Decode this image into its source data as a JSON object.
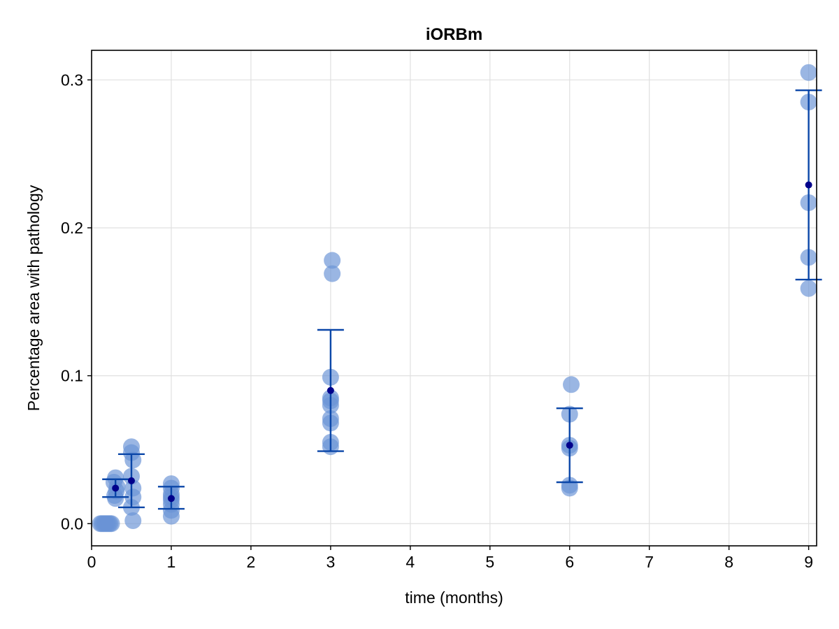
{
  "chart_data": {
    "type": "scatter",
    "title": "iORBm",
    "xlabel": "time (months)",
    "ylabel": "Percentage area with pathology",
    "xlim": [
      0,
      9.1
    ],
    "ylim": [
      -0.015,
      0.32
    ],
    "xticks": [
      0,
      1,
      2,
      3,
      4,
      5,
      6,
      7,
      8,
      9
    ],
    "xtick_labels": [
      "0",
      "1",
      "2",
      "3",
      "4",
      "5",
      "6",
      "7",
      "8",
      "9"
    ],
    "yticks": [
      0.0,
      0.1,
      0.2,
      0.3
    ],
    "ytick_labels": [
      "0.0",
      "0.1",
      "0.2",
      "0.3"
    ],
    "grid": true,
    "colors": {
      "points": "#6a93d6",
      "errorbar": "#0a46a8",
      "mean": "#00008b",
      "grid": "#e0e0e0",
      "axes": "#000000"
    },
    "groups": [
      {
        "time": 0.15,
        "points": [
          0,
          0,
          0,
          0,
          0,
          0,
          0,
          0
        ],
        "jitter": [
          -0.04,
          -0.02,
          0.0,
          0.02,
          0.04,
          0.06,
          0.08,
          0.1
        ],
        "mean": null
      },
      {
        "time": 0.3,
        "points": [
          0.031,
          0.028,
          0.025,
          0.022,
          0.019,
          0.017
        ],
        "jitter": [
          0.0,
          -0.02,
          0.02,
          0.01,
          -0.01,
          0.0
        ],
        "mean": 0.024,
        "err_low": 0.018,
        "err_high": 0.03
      },
      {
        "time": 0.5,
        "points": [
          0.052,
          0.048,
          0.043,
          0.032,
          0.024,
          0.018,
          0.011,
          0.002
        ],
        "jitter": [
          0.0,
          0.0,
          0.02,
          0.0,
          0.02,
          0.02,
          0.0,
          0.02
        ],
        "mean": 0.029,
        "err_low": 0.011,
        "err_high": 0.047
      },
      {
        "time": 1,
        "points": [
          0.027,
          0.024,
          0.02,
          0.018,
          0.016,
          0.013,
          0.009,
          0.005
        ],
        "jitter": [
          0.0,
          0.0,
          0.0,
          0.0,
          0.0,
          0.0,
          0.0,
          0.0
        ],
        "mean": 0.017,
        "err_low": 0.01,
        "err_high": 0.025
      },
      {
        "time": 3,
        "points": [
          0.178,
          0.169,
          0.099,
          0.085,
          0.083,
          0.08,
          0.071,
          0.068,
          0.055,
          0.052
        ],
        "jitter": [
          0.02,
          0.02,
          0.0,
          0.0,
          0.0,
          0.0,
          0.0,
          0.0,
          0.0,
          0.0
        ],
        "mean": 0.09,
        "err_low": 0.049,
        "err_high": 0.131
      },
      {
        "time": 6,
        "points": [
          0.094,
          0.074,
          0.053,
          0.051,
          0.026,
          0.024
        ],
        "jitter": [
          0.02,
          0.0,
          0.0,
          0.0,
          0.0,
          0.0
        ],
        "mean": 0.053,
        "err_low": 0.028,
        "err_high": 0.078
      },
      {
        "time": 9,
        "points": [
          0.305,
          0.285,
          0.217,
          0.18,
          0.159
        ],
        "jitter": [
          0.0,
          0.0,
          0.0,
          0.0,
          0.0
        ],
        "mean": 0.229,
        "err_low": 0.165,
        "err_high": 0.293
      }
    ]
  }
}
